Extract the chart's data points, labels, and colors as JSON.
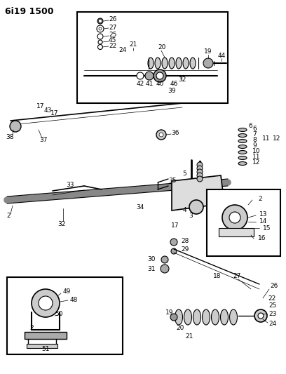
{
  "title": "6i19 1500",
  "bg_color": "#ffffff",
  "fig_width": 4.08,
  "fig_height": 5.33,
  "dpi": 100
}
